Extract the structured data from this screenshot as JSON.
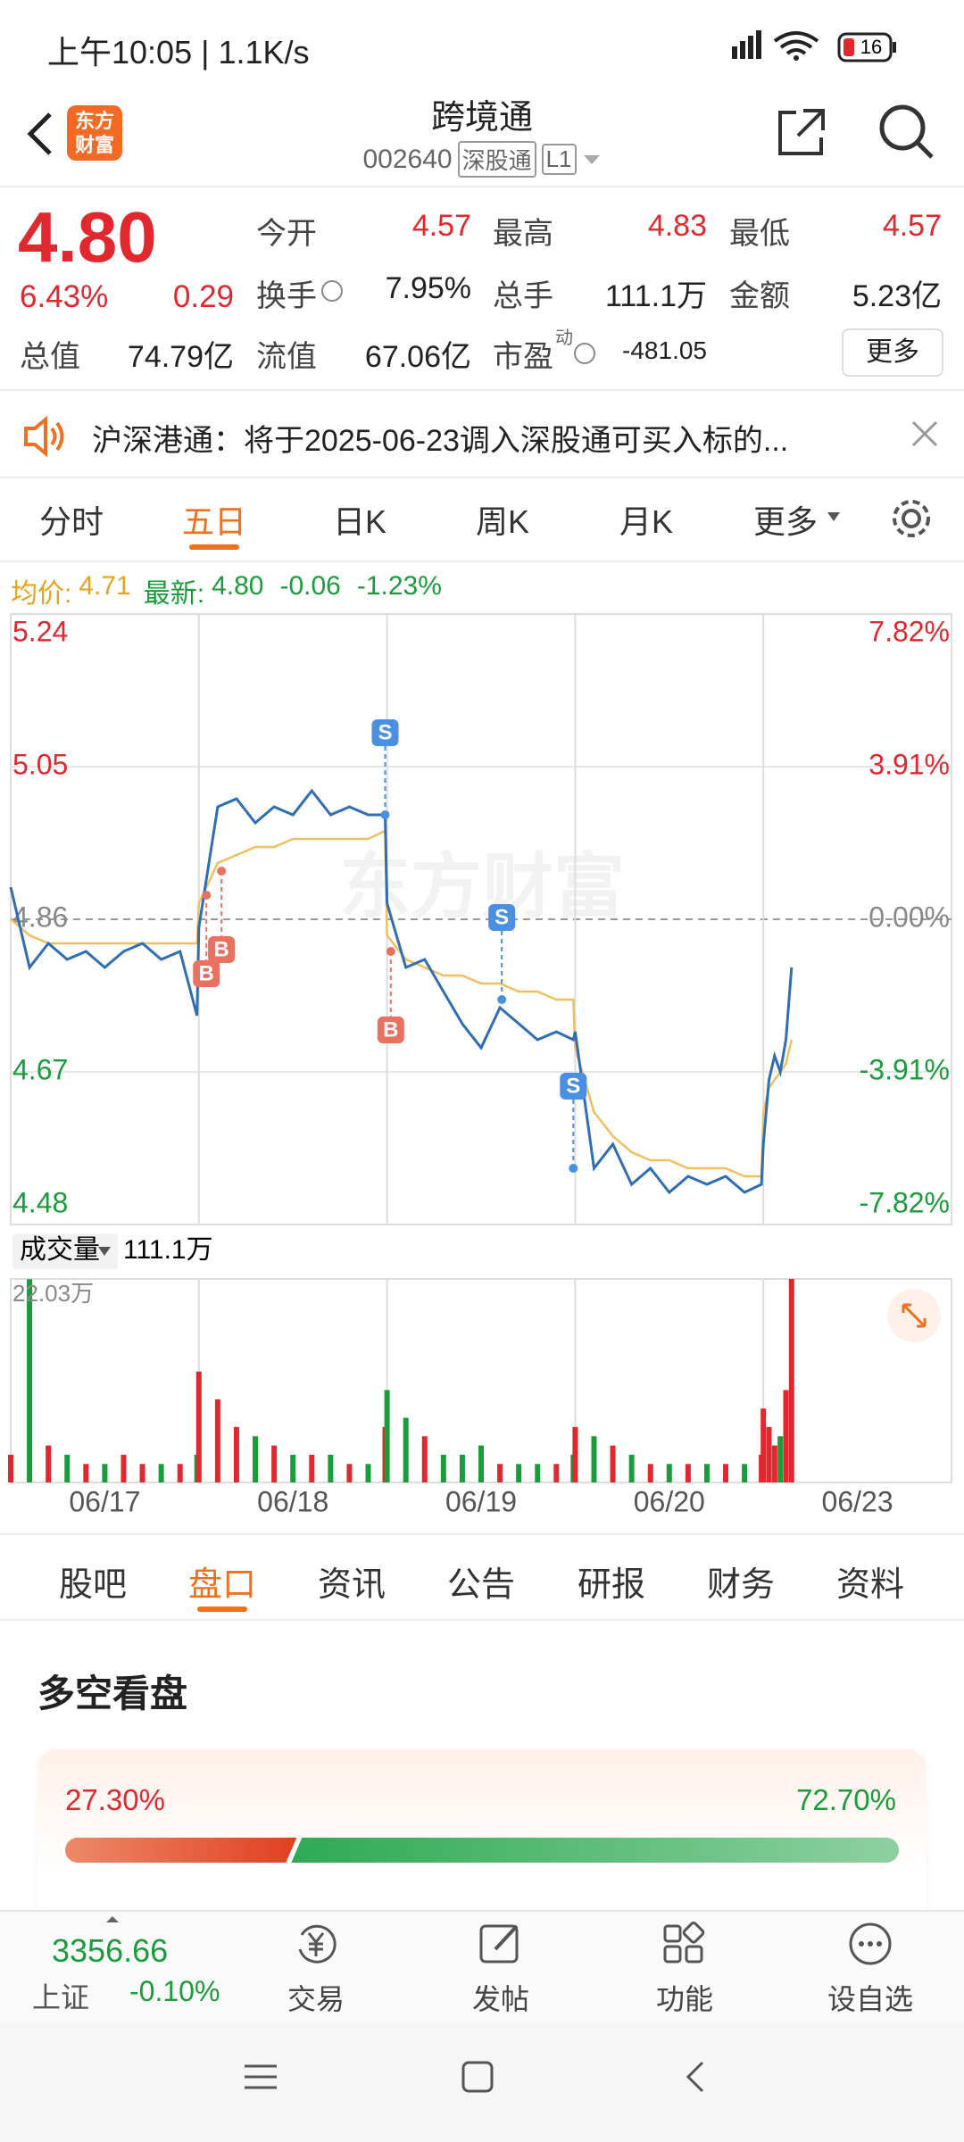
{
  "status_bar": {
    "time": "上午10:05 | 1.1K/s",
    "battery": "16"
  },
  "header": {
    "logo": [
      "东方",
      "财富"
    ],
    "title": "跨境通",
    "code": "002640",
    "board": "深股通",
    "level": "L1"
  },
  "quote": {
    "price": "4.80",
    "change_pct": "6.43%",
    "change": "0.29",
    "fields": [
      [
        "今开",
        "4.57"
      ],
      [
        "最高",
        "4.83"
      ],
      [
        "最低",
        "4.57"
      ],
      [
        "换手",
        "7.95%"
      ],
      [
        "总手",
        "111.1万"
      ],
      [
        "金额",
        "5.23亿"
      ],
      [
        "总值",
        "74.79亿"
      ],
      [
        "流值",
        "67.06亿"
      ],
      [
        "市盈",
        "-481.05"
      ]
    ],
    "pe_tag": "动",
    "more": "更多"
  },
  "notice": {
    "text": "沪深港通：将于2025-06-23调入深股通可买入标的..."
  },
  "tabs": {
    "items": [
      "分时",
      "五日",
      "日K",
      "周K",
      "月K",
      "更多"
    ],
    "active": 1
  },
  "chart_info": {
    "avg_label": "均价:",
    "avg": "4.71",
    "last_label": "最新:",
    "last": "4.80",
    "change": "-0.06",
    "change_pct": "-1.23%"
  },
  "watermark": "东方财富",
  "chart_data": [
    {
      "type": "line",
      "x": [
        0,
        0.1,
        0.2,
        0.3,
        0.4,
        0.5,
        0.6,
        0.7,
        0.8,
        0.9,
        0.99,
        1,
        1.1,
        1.2,
        1.3,
        1.4,
        1.5,
        1.6,
        1.7,
        1.8,
        1.9,
        1.99,
        2,
        2.1,
        2.2,
        2.3,
        2.4,
        2.5,
        2.6,
        2.7,
        2.8,
        2.9,
        2.99,
        3,
        3.1,
        3.2,
        3.3,
        3.4,
        3.5,
        3.6,
        3.7,
        3.8,
        3.9,
        3.99,
        4,
        4.03,
        4.06,
        4.09,
        4.12,
        4.15
      ],
      "series": [
        {
          "color": "#2f6db5",
          "values": [
            4.9,
            4.8,
            4.83,
            4.81,
            4.82,
            4.8,
            4.82,
            4.83,
            4.81,
            4.82,
            4.74,
            4.85,
            5.0,
            5.01,
            4.98,
            5.0,
            4.99,
            5.02,
            4.99,
            5.0,
            4.99,
            4.99,
            4.88,
            4.8,
            4.81,
            4.77,
            4.73,
            4.7,
            4.75,
            4.73,
            4.71,
            4.72,
            4.71,
            4.72,
            4.55,
            4.58,
            4.53,
            4.55,
            4.52,
            4.54,
            4.53,
            4.54,
            4.52,
            4.53,
            4.58,
            4.66,
            4.69,
            4.67,
            4.71,
            4.8
          ]
        },
        {
          "color": "#f0c060",
          "values": [
            4.86,
            4.84,
            4.83,
            4.83,
            4.83,
            4.83,
            4.83,
            4.83,
            4.83,
            4.83,
            4.83,
            4.88,
            4.93,
            4.94,
            4.95,
            4.95,
            4.96,
            4.96,
            4.96,
            4.96,
            4.96,
            4.97,
            4.84,
            4.81,
            4.8,
            4.79,
            4.79,
            4.78,
            4.78,
            4.77,
            4.77,
            4.76,
            4.76,
            4.7,
            4.62,
            4.59,
            4.57,
            4.56,
            4.56,
            4.55,
            4.55,
            4.55,
            4.54,
            4.54,
            4.62,
            4.65,
            4.66,
            4.67,
            4.68,
            4.71
          ]
        }
      ],
      "markers": [
        {
          "label": "B",
          "x": 1.04,
          "price": 4.89
        },
        {
          "label": "B",
          "x": 1.12,
          "price": 4.92
        },
        {
          "label": "S",
          "x": 1.99,
          "price": 4.99
        },
        {
          "label": "B",
          "x": 2.02,
          "price": 4.82
        },
        {
          "label": "S",
          "x": 2.61,
          "price": 4.76
        },
        {
          "label": "S",
          "x": 2.99,
          "price": 4.55
        }
      ],
      "xlim": [
        0,
        5
      ],
      "xticks": [
        {
          "value": 0.5,
          "label": "06/17"
        },
        {
          "value": 1.5,
          "label": "06/18"
        },
        {
          "value": 2.5,
          "label": "06/19"
        },
        {
          "value": 3.5,
          "label": "06/20"
        },
        {
          "value": 4.5,
          "label": "06/23"
        }
      ],
      "ylim": [
        4.48,
        5.24
      ],
      "yticks": [
        5.24,
        5.05,
        4.86,
        4.67,
        4.48
      ],
      "y2lim": [
        -7.82,
        7.82
      ],
      "y2ticks": [
        {
          "value": 7.82,
          "label": "7.82%"
        },
        {
          "value": 3.91,
          "label": "3.91%"
        },
        {
          "value": 0,
          "label": "0.00%"
        },
        {
          "value": -3.91,
          "label": "-3.91%"
        },
        {
          "value": -7.82,
          "label": "-7.82%"
        }
      ]
    },
    {
      "type": "bar",
      "title": "成交量",
      "value_label": "111.1万",
      "up_color": "#e0282e",
      "down_color": "#1a9c3a",
      "values": [
        3,
        22,
        4,
        3,
        2,
        2,
        3,
        2,
        2,
        2,
        3,
        12,
        9,
        6,
        5,
        4,
        3,
        3,
        3,
        2,
        2,
        6,
        10,
        7,
        5,
        3,
        3,
        4,
        2,
        2,
        2,
        2,
        3,
        6,
        5,
        4,
        3,
        2,
        2,
        2,
        2,
        2,
        2,
        3,
        8,
        6,
        4,
        5,
        10,
        22.03
      ],
      "ylim": [
        0,
        22.03
      ],
      "yticks": [
        {
          "value": 22.03,
          "label": "22.03万"
        }
      ]
    }
  ],
  "sub_tabs": {
    "items": [
      "股吧",
      "盘口",
      "资讯",
      "公告",
      "研报",
      "财务",
      "资料"
    ],
    "active": 1
  },
  "sentiment": {
    "title": "多空看盘",
    "values": [
      27.3,
      72.7
    ],
    "value_labels": [
      "27.30%",
      "72.70%"
    ]
  },
  "bottom_nav": {
    "index_value": "3356.66",
    "index_name": "上证",
    "index_change": "-0.10%",
    "items": [
      "交易",
      "发帖",
      "功能",
      "设自选"
    ]
  }
}
